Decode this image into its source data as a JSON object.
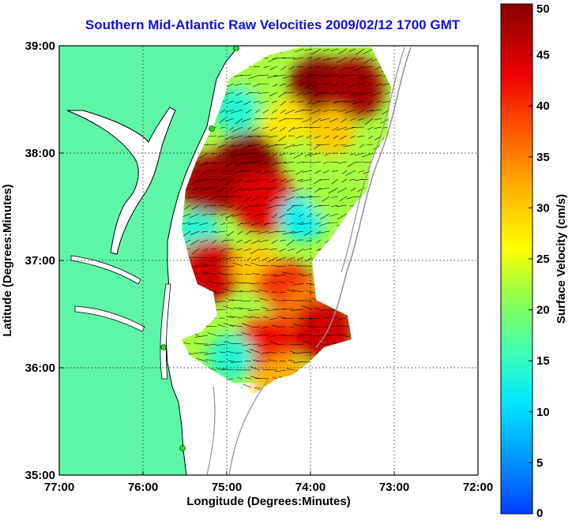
{
  "chart_data": {
    "type": "heatmap",
    "title": "Southern Mid-Atlantic Raw Velocities 2009/02/12 1700 GMT",
    "xlabel": "Longitude (Degrees:Minutes)",
    "ylabel": "Latitude (Degrees:Minutes)",
    "xlim": [
      -77,
      -72
    ],
    "ylim": [
      35,
      39
    ],
    "x_ticks": [
      {
        "value": -77,
        "label": "77:00"
      },
      {
        "value": -76,
        "label": "76:00"
      },
      {
        "value": -75,
        "label": "75:00"
      },
      {
        "value": -74,
        "label": "74:00"
      },
      {
        "value": -73,
        "label": "73:00"
      },
      {
        "value": -72,
        "label": "72:00"
      }
    ],
    "y_ticks": [
      {
        "value": 35,
        "label": "35:00"
      },
      {
        "value": 36,
        "label": "36:00"
      },
      {
        "value": 37,
        "label": "37:00"
      },
      {
        "value": 38,
        "label": "38:00"
      },
      {
        "value": 39,
        "label": "39:00"
      }
    ],
    "grid": true,
    "colorbar": {
      "label": "Surface Velocity (cm/s)",
      "range": [
        0,
        50
      ],
      "ticks": [
        0,
        5,
        10,
        15,
        20,
        25,
        30,
        35,
        40,
        45,
        50
      ],
      "placement": "right"
    },
    "colors": {
      "land": "#5ff5a8",
      "coastline": "#000000",
      "bathymetry": "#909090",
      "title": "#1010e0",
      "site_marker": "#22dd22"
    },
    "regions": [
      {
        "lon": -74.75,
        "lat": 37.9,
        "speed": 50
      },
      {
        "lon": -75.2,
        "lat": 37.7,
        "speed": 48
      },
      {
        "lon": -74.55,
        "lat": 37.55,
        "speed": 44
      },
      {
        "lon": -73.9,
        "lat": 38.6,
        "speed": 50
      },
      {
        "lon": -73.5,
        "lat": 38.6,
        "speed": 48
      },
      {
        "lon": -73.75,
        "lat": 38.2,
        "speed": 30
      },
      {
        "lon": -74.3,
        "lat": 38.3,
        "speed": 28
      },
      {
        "lon": -74.65,
        "lat": 38.55,
        "speed": 22
      },
      {
        "lon": -74.9,
        "lat": 38.4,
        "speed": 14
      },
      {
        "lon": -74.1,
        "lat": 37.4,
        "speed": 12
      },
      {
        "lon": -73.75,
        "lat": 37.6,
        "speed": 22
      },
      {
        "lon": -75.35,
        "lat": 37.25,
        "speed": 14
      },
      {
        "lon": -75.2,
        "lat": 36.9,
        "speed": 45
      },
      {
        "lon": -74.65,
        "lat": 36.95,
        "speed": 30
      },
      {
        "lon": -74.3,
        "lat": 36.7,
        "speed": 40
      },
      {
        "lon": -74.05,
        "lat": 36.55,
        "speed": 35
      },
      {
        "lon": -74.7,
        "lat": 36.45,
        "speed": 22
      },
      {
        "lon": -73.85,
        "lat": 36.35,
        "speed": 45
      },
      {
        "lon": -74.55,
        "lat": 36.2,
        "speed": 42
      },
      {
        "lon": -74.95,
        "lat": 36.1,
        "speed": 14
      },
      {
        "lon": -74.4,
        "lat": 35.85,
        "speed": 30
      },
      {
        "lon": -74.3,
        "lat": 35.9,
        "speed": 32
      }
    ]
  }
}
